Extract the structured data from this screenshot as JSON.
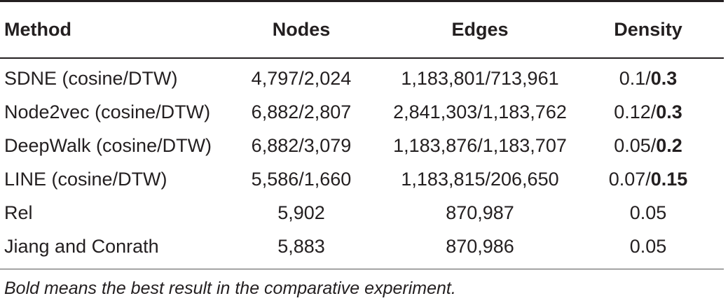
{
  "table": {
    "headers": {
      "method": "Method",
      "nodes": "Nodes",
      "edges": "Edges",
      "density": "Density"
    },
    "rows": [
      {
        "method": "SDNE (cosine/DTW)",
        "nodes": "4,797/2,024",
        "edges": "1,183,801/713,961",
        "density_a": "0.1/",
        "density_b": "0.3"
      },
      {
        "method": "Node2vec (cosine/DTW)",
        "nodes": "6,882/2,807",
        "edges": "2,841,303/1,183,762",
        "density_a": "0.12/",
        "density_b": "0.3"
      },
      {
        "method": "DeepWalk (cosine/DTW)",
        "nodes": "6,882/3,079",
        "edges": "1,183,876/1,183,707",
        "density_a": "0.05/",
        "density_b": "0.2"
      },
      {
        "method": "LINE (cosine/DTW)",
        "nodes": "5,586/1,660",
        "edges": "1,183,815/206,650",
        "density_a": "0.07/",
        "density_b": "0.15"
      },
      {
        "method": "Rel",
        "nodes": "5,902",
        "edges": "870,987",
        "density_a": "0.05",
        "density_b": ""
      },
      {
        "method": "Jiang and Conrath",
        "nodes": "5,883",
        "edges": "870,986",
        "density_a": "0.05",
        "density_b": ""
      }
    ]
  },
  "footnote": "Bold means the best result in the comparative experiment."
}
